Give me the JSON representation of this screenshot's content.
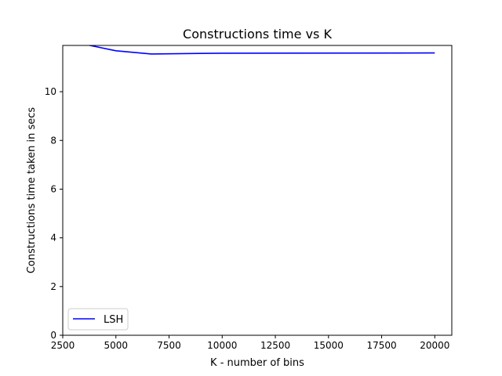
{
  "chart_data": {
    "type": "line",
    "title": "Constructions time vs K",
    "xlabel": "K - number of bins",
    "ylabel": "Constructions time taken in secs",
    "xlim": [
      2500,
      20800
    ],
    "ylim": [
      0,
      11.9
    ],
    "xticks": [
      2500,
      5000,
      7500,
      10000,
      12500,
      15000,
      17500,
      20000
    ],
    "yticks": [
      0,
      2,
      4,
      6,
      8,
      10
    ],
    "grid": false,
    "legend": {
      "position": "lower-left"
    },
    "series": [
      {
        "name": "LSH",
        "color": "#0000ff",
        "x": [
          2500,
          3333,
          5000,
          6667,
          10000,
          20000
        ],
        "y": [
          12.2,
          11.98,
          11.68,
          11.55,
          11.58,
          11.59
        ]
      }
    ]
  }
}
